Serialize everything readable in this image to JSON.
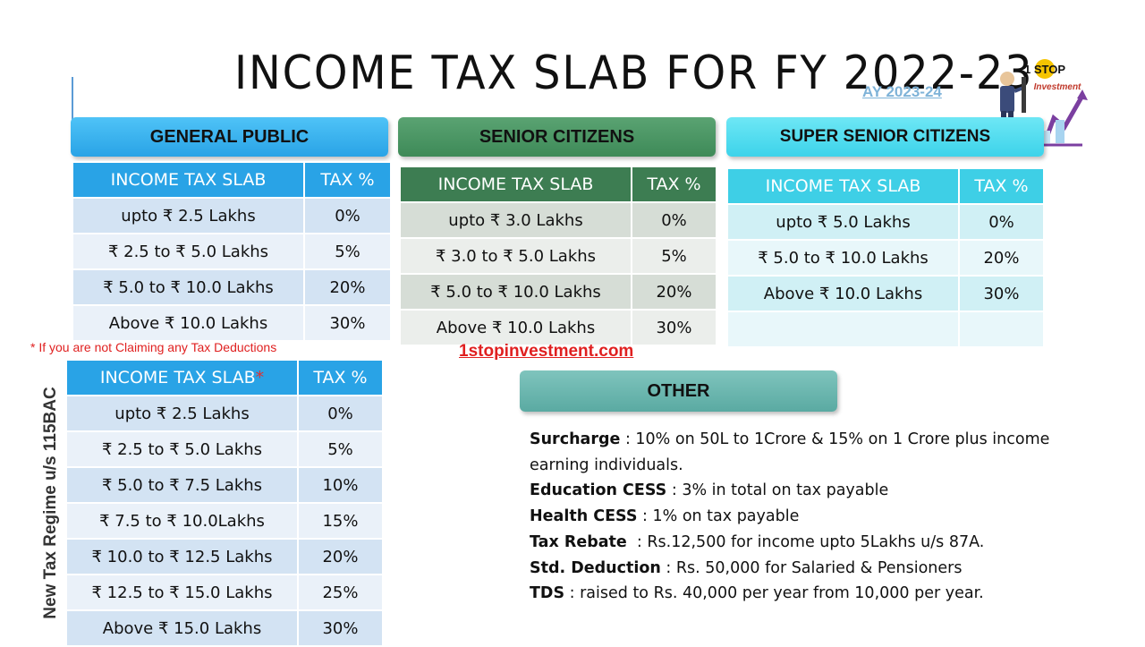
{
  "title": "INCOME TAX SLAB FOR FY 2022-23",
  "ay_label": "AY 2023-24",
  "logo": {
    "badge_text": "1 STOP",
    "brand_text": "Investment"
  },
  "sections": {
    "general": {
      "header": "GENERAL PUBLIC",
      "col_slab": "INCOME TAX SLAB",
      "col_tax": "TAX %",
      "rows": [
        {
          "slab": "upto ₹ 2.5 Lakhs",
          "tax": "0%"
        },
        {
          "slab": "₹ 2.5 to ₹ 5.0 Lakhs",
          "tax": "5%"
        },
        {
          "slab": "₹ 5.0 to ₹ 10.0 Lakhs",
          "tax": "20%"
        },
        {
          "slab": "Above ₹ 10.0 Lakhs",
          "tax": "30%"
        }
      ]
    },
    "senior": {
      "header": "SENIOR CITIZENS",
      "col_slab": "INCOME TAX SLAB",
      "col_tax": "TAX %",
      "rows": [
        {
          "slab": "upto ₹ 3.0 Lakhs",
          "tax": "0%"
        },
        {
          "slab": "₹ 3.0 to ₹ 5.0 Lakhs",
          "tax": "5%"
        },
        {
          "slab": "₹ 5.0 to ₹ 10.0 Lakhs",
          "tax": "20%"
        },
        {
          "slab": "Above ₹ 10.0 Lakhs",
          "tax": "30%"
        }
      ]
    },
    "super_senior": {
      "header": "SUPER SENIOR CITIZENS",
      "col_slab": "INCOME TAX SLAB",
      "col_tax": "TAX %",
      "rows": [
        {
          "slab": "upto ₹ 5.0 Lakhs",
          "tax": "0%"
        },
        {
          "slab": "₹ 5.0 to ₹ 10.0 Lakhs",
          "tax": "20%"
        },
        {
          "slab": "Above ₹ 10.0 Lakhs",
          "tax": "30%"
        }
      ]
    },
    "new_regime": {
      "side_label": "New Tax Regime u/s 115BAC",
      "note": "* If you are not Claiming any Tax Deductions",
      "col_slab": "INCOME TAX SLAB",
      "col_slab_star": "*",
      "col_tax": "TAX %",
      "rows": [
        {
          "slab": "upto ₹ 2.5 Lakhs",
          "tax": "0%"
        },
        {
          "slab": "₹ 2.5 to ₹ 5.0 Lakhs",
          "tax": "5%"
        },
        {
          "slab": "₹ 5.0 to ₹ 7.5 Lakhs",
          "tax": "10%"
        },
        {
          "slab": "₹ 7.5 to ₹ 10.0Lakhs",
          "tax": "15%"
        },
        {
          "slab": "₹ 10.0 to ₹ 12.5 Lakhs",
          "tax": "20%"
        },
        {
          "slab": "₹ 12.5 to ₹ 15.0 Lakhs",
          "tax": "25%"
        },
        {
          "slab": "Above ₹ 15.0 Lakhs",
          "tax": "30%"
        }
      ]
    },
    "other": {
      "header": "OTHER",
      "items": [
        {
          "label": "Surcharge",
          "sep": " : ",
          "text": "10% on 50L to 1Crore & 15% on 1 Crore plus income earning individuals."
        },
        {
          "label": "Education CESS",
          "sep": " : ",
          "text": "3% in total on tax payable"
        },
        {
          "label": "Health CESS",
          "sep": " : ",
          "text": "1% on tax payable"
        },
        {
          "label": "Tax Rebate",
          "sep": "  : ",
          "text": "Rs.12,500 for income upto 5Lakhs u/s 87A."
        },
        {
          "label": "Std. Deduction",
          "sep": " : ",
          "text": "Rs. 50,000 for Salaried & Pensioners"
        },
        {
          "label": "TDS",
          "sep": " : ",
          "text": "raised to Rs. 40,000 per year from 10,000 per year."
        }
      ]
    }
  },
  "website": "1stopinvestment.com"
}
